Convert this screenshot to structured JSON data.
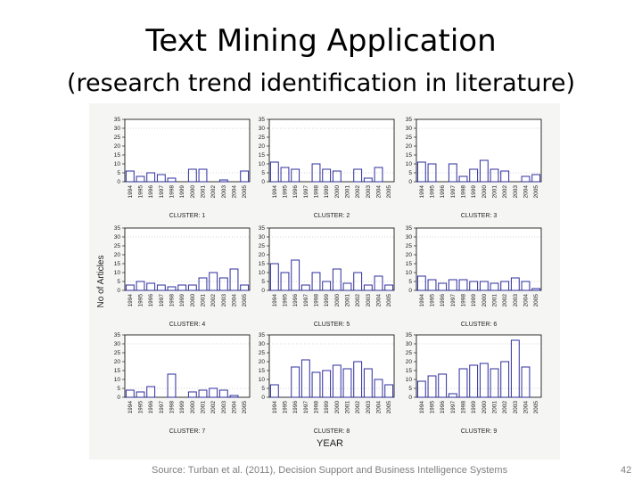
{
  "slide": {
    "title": "Text Mining Application",
    "subtitle": "(research trend identification in literature)",
    "source": "Source: Turban et al. (2011), Decision Support and Business Intelligence Systems",
    "page_number": "42"
  },
  "colors": {
    "bar": "#2d2d9e",
    "axis": "#000000",
    "grid": "#aaaaaa",
    "panel_bg": "#ffffff",
    "figure_bg": "#f5f5f4"
  },
  "chart_data": {
    "type": "bar",
    "layout": "3x3 small multiples",
    "ylabel": "No of Articles",
    "xlabel": "YEAR",
    "ylim": [
      0,
      35
    ],
    "yticks": [
      0,
      5,
      10,
      15,
      20,
      25,
      30,
      35
    ],
    "categories": [
      "1994",
      "1995",
      "1996",
      "1997",
      "1998",
      "1999",
      "2000",
      "2001",
      "2002",
      "2003",
      "2004",
      "2005"
    ],
    "series": [
      {
        "name": "CLUSTER: 1",
        "values": [
          6,
          3,
          5,
          4,
          2,
          0,
          7,
          7,
          0,
          1,
          0,
          6
        ]
      },
      {
        "name": "CLUSTER: 2",
        "values": [
          11,
          8,
          7,
          0,
          10,
          7,
          6,
          0,
          7,
          2,
          8,
          0
        ]
      },
      {
        "name": "CLUSTER: 3",
        "values": [
          11,
          10,
          0,
          10,
          3,
          7,
          12,
          7,
          6,
          0,
          3,
          4
        ]
      },
      {
        "name": "CLUSTER: 4",
        "values": [
          3,
          5,
          4,
          3,
          2,
          3,
          3,
          7,
          10,
          7,
          12,
          3
        ]
      },
      {
        "name": "CLUSTER: 5",
        "values": [
          15,
          10,
          17,
          3,
          10,
          5,
          12,
          4,
          10,
          3,
          8,
          3
        ]
      },
      {
        "name": "CLUSTER: 6",
        "values": [
          8,
          6,
          4,
          6,
          6,
          5,
          5,
          4,
          5,
          7,
          5,
          1
        ]
      },
      {
        "name": "CLUSTER: 7",
        "values": [
          4,
          3,
          6,
          0,
          13,
          0,
          3,
          4,
          5,
          4,
          1,
          0
        ]
      },
      {
        "name": "CLUSTER: 8",
        "values": [
          7,
          0,
          17,
          21,
          14,
          15,
          18,
          16,
          20,
          16,
          10,
          7
        ]
      },
      {
        "name": "CLUSTER: 9",
        "values": [
          9,
          12,
          13,
          2,
          16,
          18,
          19,
          16,
          20,
          32,
          17,
          0
        ]
      }
    ]
  }
}
